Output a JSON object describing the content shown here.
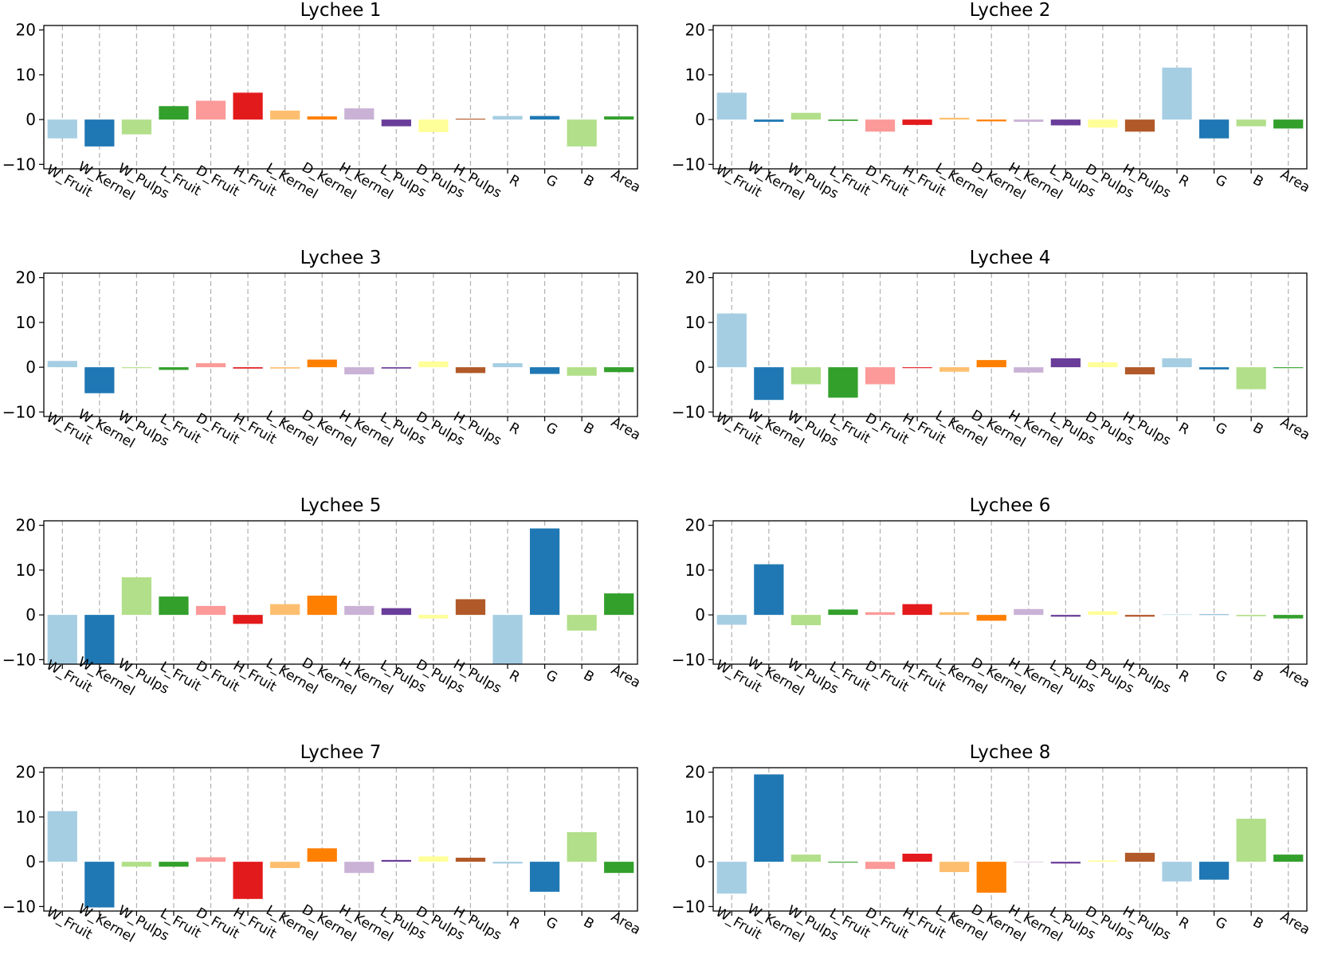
{
  "palette": [
    "#a6cee3",
    "#1f78b4",
    "#b2df8a",
    "#33a02c",
    "#fb9a99",
    "#e31a1c",
    "#fdbf6f",
    "#ff7f00",
    "#cab2d6",
    "#6a3d9a",
    "#ffff99",
    "#b15928"
  ],
  "chart_data": [
    {
      "type": "bar",
      "title": "Lychee 1",
      "categories": [
        "W_Fruit",
        "W_Kernel",
        "W_Pulps",
        "L_Fruit",
        "D_Fruit",
        "H_Fruit",
        "L_Kernel",
        "D_Kernel",
        "H_Kernel",
        "L_Pulps",
        "D_Pulps",
        "H_Pulps",
        "R",
        "G",
        "B",
        "Area"
      ],
      "values": [
        -4.2,
        -6.0,
        -3.3,
        3.0,
        4.2,
        6.0,
        2.0,
        0.7,
        2.5,
        -1.5,
        -2.8,
        0.2,
        0.8,
        0.8,
        -6.0,
        0.7
      ],
      "ylim": [
        -11,
        21
      ],
      "yticks": [
        -10,
        0,
        10,
        20
      ],
      "xlabel": "",
      "ylabel": "",
      "grid": "x dashed"
    },
    {
      "type": "bar",
      "title": "Lychee 2",
      "categories": [
        "W_Fruit",
        "W_Kernel",
        "W_Pulps",
        "L_Fruit",
        "D_Fruit",
        "H_Fruit",
        "L_Kernel",
        "D_Kernel",
        "H_Kernel",
        "L_Pulps",
        "D_Pulps",
        "H_Pulps",
        "R",
        "G",
        "B",
        "Area"
      ],
      "values": [
        6.0,
        -0.5,
        1.5,
        -0.3,
        -2.7,
        -1.2,
        0.4,
        -0.4,
        -0.5,
        -1.3,
        -1.8,
        -2.7,
        11.6,
        -4.2,
        -1.5,
        -2.0
      ],
      "ylim": [
        -11,
        21
      ],
      "yticks": [
        -10,
        0,
        10,
        20
      ],
      "xlabel": "",
      "ylabel": "",
      "grid": "x dashed"
    },
    {
      "type": "bar",
      "title": "Lychee 3",
      "categories": [
        "W_Fruit",
        "W_Kernel",
        "W_Pulps",
        "L_Fruit",
        "D_Fruit",
        "H_Fruit",
        "L_Kernel",
        "D_Kernel",
        "H_Kernel",
        "L_Pulps",
        "D_Pulps",
        "H_Pulps",
        "R",
        "G",
        "B",
        "Area"
      ],
      "values": [
        1.4,
        -5.8,
        -0.2,
        -0.6,
        0.9,
        -0.3,
        -0.3,
        1.7,
        -1.6,
        -0.3,
        1.3,
        -1.3,
        0.9,
        -1.5,
        -1.9,
        -1.1
      ],
      "ylim": [
        -11,
        21
      ],
      "yticks": [
        -10,
        0,
        10,
        20
      ],
      "xlabel": "",
      "ylabel": "",
      "grid": "x dashed"
    },
    {
      "type": "bar",
      "title": "Lychee 4",
      "categories": [
        "W_Fruit",
        "W_Kernel",
        "W_Pulps",
        "L_Fruit",
        "D_Fruit",
        "H_Fruit",
        "L_Kernel",
        "D_Kernel",
        "H_Kernel",
        "L_Pulps",
        "D_Pulps",
        "H_Pulps",
        "R",
        "G",
        "B",
        "Area"
      ],
      "values": [
        12.0,
        -7.3,
        -3.8,
        -6.8,
        -3.8,
        -0.2,
        -1.0,
        1.6,
        -1.2,
        2.0,
        1.1,
        -1.6,
        2.0,
        -0.5,
        -4.9,
        -0.2
      ],
      "ylim": [
        -11,
        21
      ],
      "yticks": [
        -10,
        0,
        10,
        20
      ],
      "xlabel": "",
      "ylabel": "",
      "grid": "x dashed"
    },
    {
      "type": "bar",
      "title": "Lychee 5",
      "categories": [
        "W_Fruit",
        "W_Kernel",
        "W_Pulps",
        "L_Fruit",
        "D_Fruit",
        "H_Fruit",
        "L_Kernel",
        "D_Kernel",
        "H_Kernel",
        "L_Pulps",
        "D_Pulps",
        "H_Pulps",
        "R",
        "G",
        "B",
        "Area"
      ],
      "values": [
        -11.0,
        -11.0,
        8.4,
        4.1,
        2.0,
        -2.0,
        2.4,
        4.3,
        2.0,
        1.5,
        -0.8,
        3.5,
        -11.0,
        19.3,
        -3.5,
        4.8
      ],
      "ylim": [
        -11,
        21
      ],
      "yticks": [
        -10,
        0,
        10,
        20
      ],
      "xlabel": "",
      "ylabel": "",
      "grid": "x dashed"
    },
    {
      "type": "bar",
      "title": "Lychee 6",
      "categories": [
        "W_Fruit",
        "W_Kernel",
        "W_Pulps",
        "L_Fruit",
        "D_Fruit",
        "H_Fruit",
        "L_Kernel",
        "D_Kernel",
        "H_Kernel",
        "L_Pulps",
        "D_Pulps",
        "H_Pulps",
        "R",
        "G",
        "B",
        "Area"
      ],
      "values": [
        -2.2,
        11.3,
        -2.3,
        1.2,
        0.6,
        2.4,
        0.6,
        -1.3,
        1.3,
        -0.4,
        0.8,
        -0.4,
        0.1,
        0.1,
        -0.3,
        -0.8
      ],
      "ylim": [
        -11,
        21
      ],
      "yticks": [
        -10,
        0,
        10,
        20
      ],
      "xlabel": "",
      "ylabel": "",
      "grid": "x dashed"
    },
    {
      "type": "bar",
      "title": "Lychee 7",
      "categories": [
        "W_Fruit",
        "W_Kernel",
        "W_Pulps",
        "L_Fruit",
        "D_Fruit",
        "H_Fruit",
        "L_Kernel",
        "D_Kernel",
        "H_Kernel",
        "L_Pulps",
        "D_Pulps",
        "H_Pulps",
        "R",
        "G",
        "B",
        "Area"
      ],
      "values": [
        11.3,
        -10.2,
        -1.1,
        -1.1,
        1.0,
        -8.3,
        -1.4,
        3.0,
        -2.5,
        0.4,
        1.2,
        0.9,
        -0.4,
        -6.7,
        6.6,
        -2.5
      ],
      "ylim": [
        -11,
        21
      ],
      "yticks": [
        -10,
        0,
        10,
        20
      ],
      "xlabel": "",
      "ylabel": "",
      "grid": "x dashed"
    },
    {
      "type": "bar",
      "title": "Lychee 8",
      "categories": [
        "W_Fruit",
        "W_Kernel",
        "W_Pulps",
        "L_Fruit",
        "D_Fruit",
        "H_Fruit",
        "L_Kernel",
        "D_Kernel",
        "H_Kernel",
        "L_Pulps",
        "D_Pulps",
        "H_Pulps",
        "R",
        "G",
        "B",
        "Area"
      ],
      "values": [
        -7.1,
        19.5,
        1.6,
        -0.2,
        -1.6,
        1.8,
        -2.3,
        -6.9,
        -0.1,
        -0.4,
        0.3,
        2.0,
        -4.4,
        -4.0,
        9.6,
        1.6
      ],
      "ylim": [
        -11,
        21
      ],
      "yticks": [
        -10,
        0,
        10,
        20
      ],
      "xlabel": "",
      "ylabel": "",
      "grid": "x dashed"
    }
  ]
}
